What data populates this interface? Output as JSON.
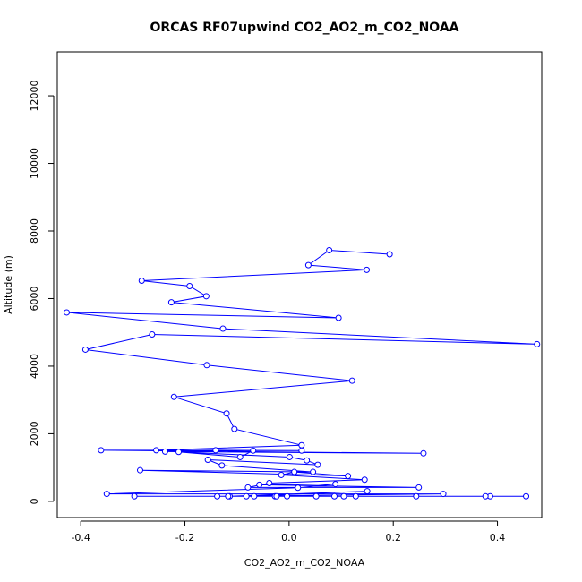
{
  "chart_data": {
    "type": "line",
    "title": "ORCAS RF07upwind CO2_AO2_m_CO2_NOAA",
    "xlabel": "CO2_AO2_m_CO2_NOAA",
    "ylabel": "Altitude (m)",
    "xlim": [
      -0.445,
      0.485
    ],
    "ylim": [
      -480,
      13300
    ],
    "xticks": [
      -0.4,
      -0.2,
      0.0,
      0.2,
      0.4
    ],
    "xtick_labels": [
      "-0.4",
      "-0.2",
      "0.0",
      "0.2",
      "0.4"
    ],
    "yticks": [
      0,
      2000,
      4000,
      6000,
      8000,
      10000,
      12000
    ],
    "ytick_labels": [
      "0",
      "2000",
      "4000",
      "6000",
      "8000",
      "10000",
      "12000"
    ],
    "grid": false,
    "markers": "open-circle",
    "color": "#0000ff",
    "series": [
      {
        "points": [
          [
            0.193,
            7310
          ],
          [
            0.077,
            7430
          ],
          [
            0.037,
            6990
          ],
          [
            0.149,
            6850
          ],
          [
            -0.283,
            6530
          ],
          [
            -0.191,
            6370
          ],
          [
            -0.159,
            6070
          ],
          [
            -0.226,
            5890
          ],
          [
            0.095,
            5430
          ],
          [
            -0.427,
            5590
          ],
          [
            -0.127,
            5110
          ],
          [
            0.476,
            4650
          ],
          [
            -0.263,
            4940
          ],
          [
            -0.391,
            4490
          ],
          [
            -0.158,
            4030
          ],
          [
            0.121,
            3570
          ],
          [
            -0.221,
            3090
          ],
          [
            -0.12,
            2600
          ],
          [
            -0.105,
            2140
          ],
          [
            0.024,
            1660
          ],
          [
            -0.255,
            1510
          ],
          [
            -0.141,
            1510
          ],
          [
            0.024,
            1500
          ],
          [
            -0.361,
            1510
          ],
          [
            0.258,
            1420
          ],
          [
            -0.238,
            1470
          ],
          [
            -0.069,
            1500
          ],
          [
            -0.094,
            1310
          ],
          [
            -0.212,
            1460
          ],
          [
            0.001,
            1310
          ],
          [
            0.034,
            1210
          ],
          [
            0.055,
            1080
          ],
          [
            -0.156,
            1230
          ],
          [
            -0.129,
            1060
          ],
          [
            0.046,
            870
          ],
          [
            -0.286,
            920
          ],
          [
            0.113,
            750
          ],
          [
            0.01,
            870
          ],
          [
            -0.015,
            780
          ],
          [
            0.145,
            640
          ],
          [
            -0.038,
            540
          ],
          [
            -0.079,
            410
          ],
          [
            0.249,
            410
          ],
          [
            -0.057,
            490
          ],
          [
            0.089,
            510
          ],
          [
            0.017,
            400
          ],
          [
            -0.35,
            220
          ],
          [
            0.296,
            220
          ],
          [
            -0.114,
            150
          ],
          [
            0.15,
            300
          ],
          [
            -0.082,
            150
          ],
          [
            0.386,
            150
          ],
          [
            -0.027,
            150
          ],
          [
            0.455,
            150
          ],
          [
            -0.138,
            150
          ],
          [
            0.128,
            150
          ],
          [
            -0.024,
            150
          ],
          [
            0.377,
            150
          ],
          [
            -0.067,
            150
          ],
          [
            0.105,
            150
          ],
          [
            -0.004,
            150
          ],
          [
            0.244,
            150
          ],
          [
            -0.117,
            150
          ],
          [
            0.087,
            150
          ],
          [
            -0.297,
            150
          ],
          [
            0.052,
            150
          ]
        ]
      }
    ]
  }
}
